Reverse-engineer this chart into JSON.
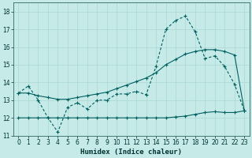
{
  "title": "",
  "xlabel": "Humidex (Indice chaleur)",
  "ylabel": "",
  "bg_color": "#c5eae7",
  "grid_color": "#aad6d2",
  "line_color": "#006060",
  "xlim": [
    -0.5,
    23.5
  ],
  "ylim": [
    11,
    18.5
  ],
  "yticks": [
    11,
    12,
    13,
    14,
    15,
    16,
    17,
    18
  ],
  "xticks": [
    0,
    1,
    2,
    3,
    4,
    5,
    6,
    7,
    8,
    9,
    10,
    11,
    12,
    13,
    14,
    15,
    16,
    17,
    18,
    19,
    20,
    21,
    22,
    23
  ],
  "series1_x": [
    0,
    1,
    2,
    3,
    4,
    5,
    6,
    7,
    8,
    9,
    10,
    11,
    12,
    13,
    14,
    15,
    16,
    17,
    18,
    19,
    20,
    21,
    22,
    23
  ],
  "series1_y": [
    13.4,
    13.8,
    13.0,
    12.0,
    11.2,
    12.6,
    12.85,
    12.5,
    13.0,
    13.0,
    13.35,
    13.35,
    13.5,
    13.3,
    14.9,
    17.0,
    17.5,
    17.75,
    16.85,
    15.35,
    15.5,
    14.9,
    13.9,
    12.4
  ],
  "series2_x": [
    0,
    1,
    2,
    3,
    4,
    5,
    6,
    7,
    8,
    9,
    10,
    11,
    12,
    13,
    14,
    15,
    16,
    17,
    18,
    19,
    20,
    21,
    22,
    23
  ],
  "series2_y": [
    13.4,
    13.4,
    13.25,
    13.15,
    13.05,
    13.05,
    13.15,
    13.25,
    13.35,
    13.45,
    13.65,
    13.85,
    14.05,
    14.25,
    14.55,
    15.0,
    15.3,
    15.6,
    15.75,
    15.85,
    15.85,
    15.75,
    15.55,
    12.4
  ],
  "series3_x": [
    0,
    1,
    2,
    3,
    4,
    5,
    6,
    7,
    8,
    9,
    10,
    11,
    12,
    13,
    14,
    15,
    16,
    17,
    18,
    19,
    20,
    21,
    22,
    23
  ],
  "series3_y": [
    12.0,
    12.0,
    12.0,
    12.0,
    12.0,
    12.0,
    12.0,
    12.0,
    12.0,
    12.0,
    12.0,
    12.0,
    12.0,
    12.0,
    12.0,
    12.0,
    12.05,
    12.1,
    12.2,
    12.3,
    12.35,
    12.3,
    12.3,
    12.4
  ]
}
